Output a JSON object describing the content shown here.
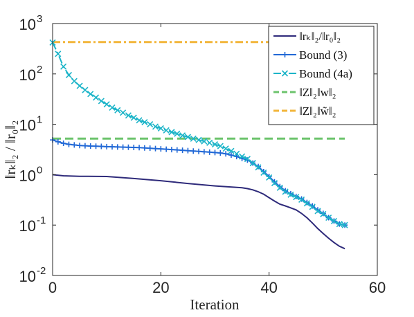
{
  "chart_data": {
    "type": "line",
    "xlabel": "Iteration",
    "ylabel": "‖rₖ‖₂ / ‖r₀‖₂",
    "xlim": [
      0,
      60
    ],
    "ylim": [
      0.01,
      1000
    ],
    "yscale": "log",
    "grid": false,
    "legend_position": "top-right",
    "x_ticks": [
      {
        "value": 0,
        "label": "0"
      },
      {
        "value": 20,
        "label": "20"
      },
      {
        "value": 40,
        "label": "40"
      },
      {
        "value": 60,
        "label": "60"
      }
    ],
    "y_ticks": [
      {
        "value": 0.01,
        "base": "10",
        "exp": "-2"
      },
      {
        "value": 0.1,
        "base": "10",
        "exp": "-1"
      },
      {
        "value": 1,
        "base": "10",
        "exp": "0"
      },
      {
        "value": 10,
        "base": "10",
        "exp": "1"
      },
      {
        "value": 100,
        "base": "10",
        "exp": "2"
      },
      {
        "value": 1000,
        "base": "10",
        "exp": "3"
      }
    ],
    "series": [
      {
        "name": "‖rₖ‖₂/‖r₀‖₂",
        "color": "#2e2a7a",
        "style": "solid",
        "marker": "none",
        "x": [
          0,
          2,
          5,
          10,
          15,
          20,
          25,
          30,
          35,
          36,
          37,
          38,
          39,
          40,
          41,
          42,
          43,
          44,
          45,
          46,
          47,
          48,
          49,
          50,
          51,
          52,
          53,
          54
        ],
        "y": [
          1.0,
          0.95,
          0.93,
          0.92,
          0.84,
          0.76,
          0.67,
          0.6,
          0.55,
          0.53,
          0.5,
          0.46,
          0.41,
          0.35,
          0.3,
          0.26,
          0.24,
          0.22,
          0.2,
          0.17,
          0.14,
          0.11,
          0.085,
          0.068,
          0.055,
          0.045,
          0.038,
          0.034
        ]
      },
      {
        "name": "Bound (3)",
        "color": "#2168d6",
        "style": "solid",
        "marker": "plus",
        "x": [
          0,
          1,
          2,
          3,
          4,
          5,
          6,
          7,
          8,
          9,
          10,
          11,
          12,
          13,
          14,
          15,
          16,
          17,
          18,
          19,
          20,
          21,
          22,
          23,
          24,
          25,
          26,
          27,
          28,
          29,
          30,
          31,
          32,
          33,
          34,
          35,
          36,
          37,
          38,
          39,
          40,
          41,
          42,
          43,
          44,
          45,
          46,
          47,
          48,
          49,
          50,
          51,
          52,
          53,
          54
        ],
        "y": [
          4.9,
          4.5,
          4.2,
          4.0,
          3.9,
          3.8,
          3.75,
          3.7,
          3.68,
          3.65,
          3.6,
          3.58,
          3.55,
          3.52,
          3.5,
          3.48,
          3.45,
          3.4,
          3.35,
          3.3,
          3.25,
          3.2,
          3.15,
          3.1,
          3.05,
          3.0,
          2.95,
          2.9,
          2.85,
          2.8,
          2.75,
          2.7,
          2.6,
          2.45,
          2.3,
          2.1,
          1.95,
          1.7,
          1.45,
          1.15,
          0.92,
          0.72,
          0.58,
          0.48,
          0.42,
          0.37,
          0.33,
          0.28,
          0.24,
          0.2,
          0.17,
          0.14,
          0.12,
          0.105,
          0.1
        ]
      },
      {
        "name": "Bound (4a)",
        "color": "#1cb4c8",
        "style": "dashdot",
        "marker": "x",
        "x": [
          0,
          1,
          2,
          3,
          4,
          5,
          6,
          7,
          8,
          9,
          10,
          11,
          12,
          13,
          14,
          15,
          16,
          17,
          18,
          19,
          20,
          21,
          22,
          23,
          24,
          25,
          26,
          27,
          28,
          29,
          30,
          31,
          32,
          33,
          34,
          35,
          36,
          37,
          38,
          39,
          40,
          41,
          42,
          43,
          44,
          45,
          46,
          47,
          48,
          49,
          50,
          51,
          52,
          53,
          54
        ],
        "y": [
          420,
          250,
          140,
          95,
          72,
          58,
          48,
          40,
          34,
          29,
          25,
          21.5,
          19,
          17,
          15,
          13.5,
          12,
          11,
          10,
          9,
          8.3,
          7.6,
          7.0,
          6.5,
          6.0,
          5.6,
          5.2,
          4.9,
          4.6,
          4.3,
          4.0,
          3.7,
          3.3,
          2.95,
          2.6,
          2.3,
          2.05,
          1.7,
          1.4,
          1.1,
          0.88,
          0.68,
          0.55,
          0.46,
          0.4,
          0.36,
          0.32,
          0.27,
          0.23,
          0.19,
          0.165,
          0.14,
          0.12,
          0.105,
          0.1
        ]
      },
      {
        "name": "‖Z‖₂‖w‖₂",
        "color": "#6cc36c",
        "style": "dashed",
        "marker": "none",
        "x": [
          0,
          54
        ],
        "y": [
          5.2,
          5.2
        ]
      },
      {
        "name": "‖Z‖₂‖w̃‖₂",
        "color": "#f2b53a",
        "style": "dashdot",
        "marker": "none",
        "x": [
          0,
          54
        ],
        "y": [
          430,
          430
        ]
      }
    ]
  }
}
